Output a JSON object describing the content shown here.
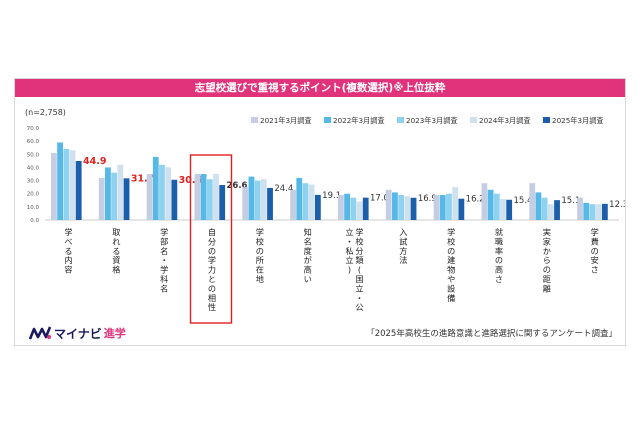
{
  "title": "志望校選びで重視するポイント(複数選択)※上位抜粋",
  "sample_note": "(n=2,758)",
  "source": "「2025年高校生の進路意識と進路選択に関するアンケート調査」",
  "logo": {
    "text": "マイナビ",
    "sub": "進学"
  },
  "colors": {
    "title_bar": "#e0337b",
    "highlight_label": "#e02020",
    "highlight_box": "#e02020",
    "series": [
      "#c5cde3",
      "#55b8e6",
      "#8fd2f0",
      "#cfe0ee",
      "#1b5fab"
    ]
  },
  "chart_data": {
    "type": "bar",
    "ylim": [
      0,
      70
    ],
    "yticks": [
      "0.0",
      "10.0",
      "20.0",
      "30.0",
      "40.0",
      "50.0",
      "60.0",
      "70.0"
    ],
    "legend_position": "top-right",
    "categories": [
      "学べる内容",
      "取れる資格",
      "学部名・学科名",
      "自分の学力との相性",
      "学校の所在地",
      "知名度が高い",
      "学校分類(国立・公立・私立)",
      "入試方法",
      "学校の建物や設備",
      "就職率の高さ",
      "実家からの距離",
      "学費の安さ"
    ],
    "series": [
      {
        "name": "2021年3月調査",
        "values": [
          51,
          32,
          35,
          35,
          25,
          23,
          19,
          23,
          19,
          28,
          28,
          17
        ]
      },
      {
        "name": "2022年3月調査",
        "values": [
          59,
          40,
          48,
          35,
          33,
          32,
          20,
          21,
          19,
          23,
          21,
          13
        ]
      },
      {
        "name": "2023年3月調査",
        "values": [
          54,
          36,
          42,
          31,
          30,
          28,
          17,
          19,
          20,
          20,
          17,
          12
        ]
      },
      {
        "name": "2024年3月調査",
        "values": [
          53,
          42,
          40,
          35,
          31,
          27,
          14,
          18,
          25,
          16,
          12,
          12
        ]
      },
      {
        "name": "2025年3月調査",
        "values": [
          44.9,
          31.7,
          30.6,
          26.6,
          24.4,
          19.1,
          17.0,
          16.9,
          16.2,
          15.4,
          15.1,
          12.3
        ]
      }
    ],
    "value_labels": [
      "44.9",
      "31.7",
      "30.6",
      "26.6",
      "24.4",
      "19.1",
      "17.0",
      "16.9",
      "16.2",
      "15.4",
      "15.1",
      "12.3"
    ],
    "highlight_labels": [
      0,
      1,
      2
    ],
    "highlight_category": 3
  }
}
